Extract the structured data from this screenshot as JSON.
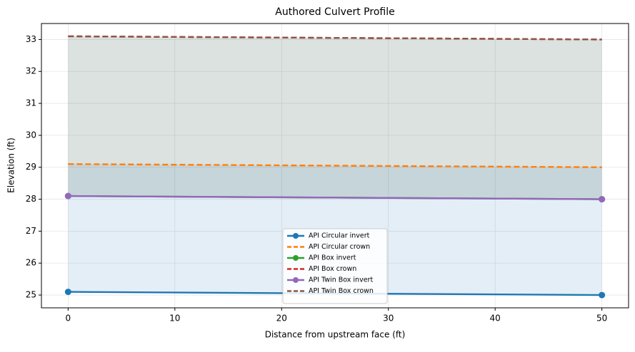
{
  "chart_data": {
    "type": "line",
    "title": "Authored Culvert Profile",
    "x_label": "Distance from upstream face (ft)",
    "y_label": "Elevation (ft)",
    "x": [
      0,
      50
    ],
    "series": [
      {
        "name": "API Circular invert",
        "color": "#1f77b4",
        "style": "solid",
        "marker": true,
        "values": [
          25.1,
          25.0
        ]
      },
      {
        "name": "API Circular crown",
        "color": "#ff7f0e",
        "style": "dashed",
        "marker": false,
        "values": [
          29.1,
          29.0
        ]
      },
      {
        "name": "API Box invert",
        "color": "#2ca02c",
        "style": "solid",
        "marker": true,
        "values": [
          28.1,
          28.0
        ]
      },
      {
        "name": "API Box crown",
        "color": "#d62728",
        "style": "dashed",
        "marker": false,
        "values": [
          33.1,
          33.0
        ]
      },
      {
        "name": "API Twin Box invert",
        "color": "#9467bd",
        "style": "solid",
        "marker": true,
        "values": [
          28.1,
          28.0
        ]
      },
      {
        "name": "API Twin Box crown",
        "color": "#8c564b",
        "style": "dashed",
        "marker": false,
        "values": [
          33.1,
          33.0
        ]
      }
    ],
    "xlim": [
      -2.5,
      52.5
    ],
    "xticks": [
      0,
      10,
      20,
      30,
      40,
      50
    ],
    "ylim": [
      24.6,
      33.5
    ],
    "yticks": [
      25,
      26,
      27,
      28,
      29,
      30,
      31,
      32,
      33
    ],
    "grid": true,
    "legend": "lower center"
  }
}
